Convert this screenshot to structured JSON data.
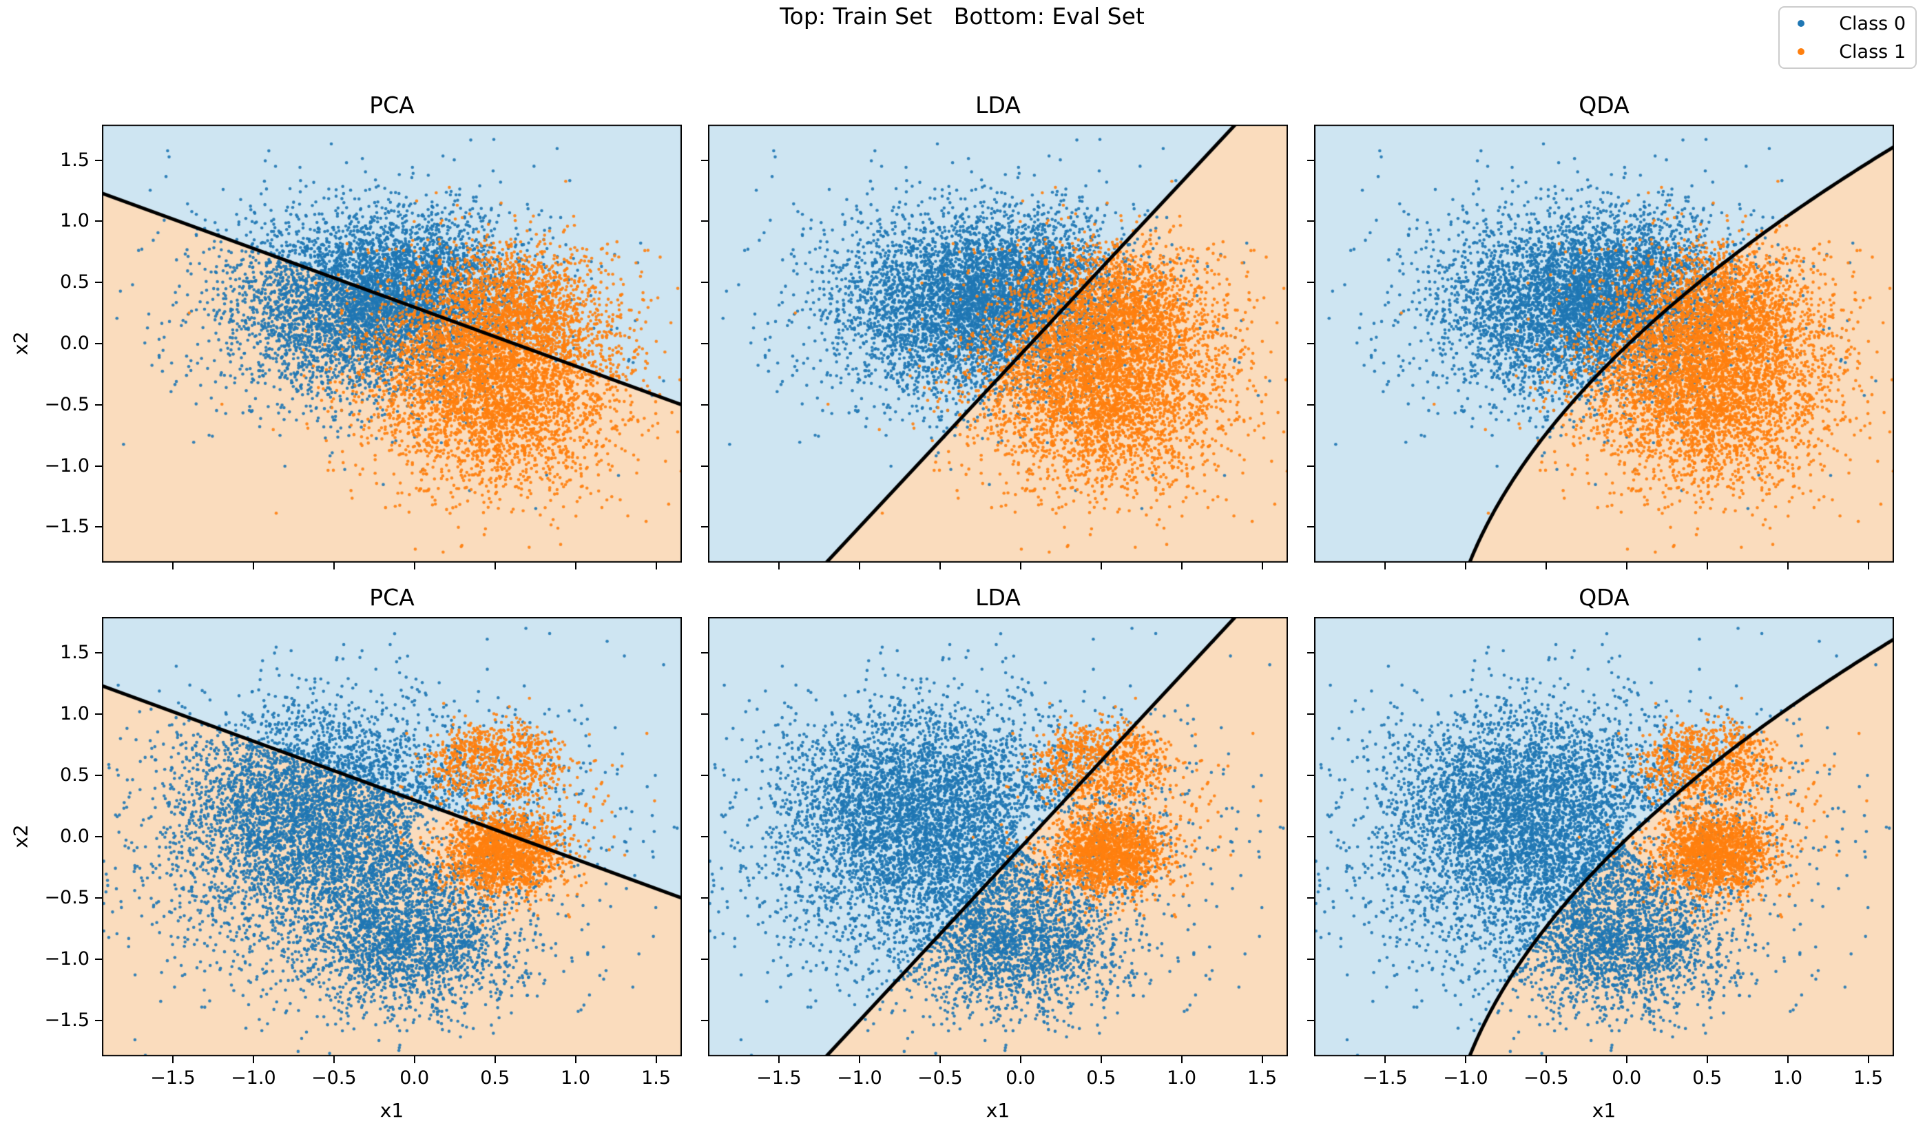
{
  "chart_data": {
    "type": "scatter",
    "suptitle": "Top: Train Set   Bottom: Eval Set",
    "legend": [
      {
        "label": "Class 0",
        "color": "#1f77b4"
      },
      {
        "label": "Class 1",
        "color": "#ff7f0e"
      }
    ],
    "axes": {
      "xlabel": "x1",
      "ylabel": "x2",
      "xlim": [
        -1.94,
        1.66
      ],
      "ylim": [
        -1.79,
        1.79
      ],
      "xticks": [
        -1.5,
        -1.0,
        -0.5,
        0.0,
        0.5,
        1.0,
        1.5
      ],
      "yticks": [
        1.5,
        1.0,
        0.5,
        0.0,
        -0.5,
        -1.0,
        -1.5
      ],
      "xtick_labels": [
        "−1.5",
        "−1.0",
        "−0.5",
        "0.0",
        "0.5",
        "1.0",
        "1.5"
      ],
      "ytick_labels": [
        "1.5",
        "1.0",
        "0.5",
        "0.0",
        "−0.5",
        "−1.0",
        "−1.5"
      ]
    },
    "colors": {
      "class0_dot": "#1f77b4",
      "class1_dot": "#ff7f0e",
      "region_class0": "#cee5f2",
      "region_class1": "#fadcbd",
      "boundary": "#000000"
    },
    "panels": [
      {
        "row": "train",
        "col": 0,
        "title": "PCA",
        "boundary": "PCA"
      },
      {
        "row": "train",
        "col": 1,
        "title": "LDA",
        "boundary": "LDA"
      },
      {
        "row": "train",
        "col": 2,
        "title": "QDA",
        "boundary": "QDA"
      },
      {
        "row": "eval",
        "col": 0,
        "title": "PCA",
        "boundary": "PCA"
      },
      {
        "row": "eval",
        "col": 1,
        "title": "LDA",
        "boundary": "LDA"
      },
      {
        "row": "eval",
        "col": 2,
        "title": "QDA",
        "boundary": "QDA"
      }
    ],
    "boundaries": {
      "PCA": {
        "type": "line",
        "points": [
          [
            -1.94,
            1.23
          ],
          [
            1.66,
            -0.5
          ]
        ],
        "fill_side": "bottom"
      },
      "LDA": {
        "type": "line",
        "points": [
          [
            -1.206,
            -1.79
          ],
          [
            1.333,
            1.79
          ]
        ],
        "fill_side": "right"
      },
      "QDA": {
        "type": "quad_x_of_y",
        "a": 0.015,
        "b": 0.8,
        "c": 0.138,
        "fill_side": "right"
      }
    },
    "datasets": {
      "train": {
        "seed": 42,
        "class0": {
          "clusters": [
            {
              "kind": "gauss",
              "cx": -0.3,
              "cy": 0.3,
              "sx": 0.42,
              "sy": 0.36,
              "n": 4200
            },
            {
              "kind": "gauss",
              "cx": 0.05,
              "cy": 0.55,
              "sx": 0.3,
              "sy": 0.28,
              "n": 1000
            },
            {
              "kind": "gauss",
              "cx": -0.3,
              "cy": 0.25,
              "sx": 0.65,
              "sy": 0.55,
              "n": 500
            }
          ]
        },
        "class1": {
          "clusters": [
            {
              "kind": "gauss",
              "cx": 0.5,
              "cy": -0.3,
              "sx": 0.36,
              "sy": 0.42,
              "n": 4200
            },
            {
              "kind": "gauss",
              "cx": 0.62,
              "cy": 0.3,
              "sx": 0.28,
              "sy": 0.25,
              "n": 1200
            },
            {
              "kind": "gauss",
              "cx": 0.5,
              "cy": -0.1,
              "sx": 0.6,
              "sy": 0.55,
              "n": 400
            }
          ]
        }
      },
      "eval": {
        "seed": 7,
        "class0": {
          "clusters": [
            {
              "kind": "gauss",
              "cx": -0.4,
              "cy": -0.1,
              "sx": 0.55,
              "sy": 0.52,
              "n": 4500
            },
            {
              "kind": "gauss",
              "cx": 0.0,
              "cy": -0.9,
              "sx": 0.3,
              "sy": 0.25,
              "n": 1500
            },
            {
              "kind": "gauss",
              "cx": -0.75,
              "cy": 0.35,
              "sx": 0.35,
              "sy": 0.35,
              "n": 1500
            },
            {
              "kind": "gauss",
              "cx": -0.2,
              "cy": -0.1,
              "sx": 0.85,
              "sy": 0.75,
              "n": 600
            }
          ],
          "hole": {
            "cx": 0.2,
            "cy": 0.0,
            "r": 0.22,
            "p": 0.8
          }
        },
        "class1": {
          "clusters": [
            {
              "kind": "gauss",
              "cx": 0.55,
              "cy": -0.13,
              "sx": 0.18,
              "sy": 0.17,
              "n": 1700
            },
            {
              "kind": "ring",
              "cx": 0.5,
              "cy": 0.6,
              "r0": 0.2,
              "sr": 0.09,
              "n": 800
            },
            {
              "kind": "gauss",
              "cx": 0.55,
              "cy": 0.2,
              "sx": 0.35,
              "sy": 0.35,
              "n": 150
            }
          ]
        }
      }
    }
  }
}
